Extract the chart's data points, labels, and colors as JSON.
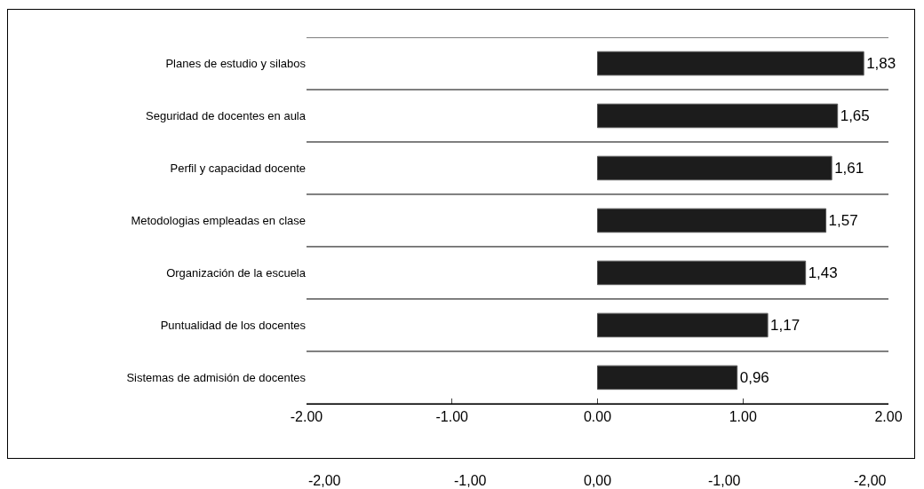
{
  "chart_data": {
    "type": "bar",
    "orientation": "horizontal",
    "categories": [
      "Planes de estudio y silabos",
      "Seguridad de docentes en aula",
      "Perfil y capacidad docente",
      "Metodologias empleadas en clase",
      "Organización de la escuela",
      "Puntualidad de los docentes",
      "Sistemas de admisión de docentes"
    ],
    "values": [
      1.83,
      1.65,
      1.61,
      1.57,
      1.43,
      1.17,
      0.96
    ],
    "value_labels": [
      "1,83",
      "1,65",
      "1,61",
      "1,57",
      "1,43",
      "1,17",
      "0,96"
    ],
    "color": "#1c1c1c",
    "xlim": [
      -2,
      2
    ],
    "xticks": [
      {
        "value": -2,
        "label": "-2.00"
      },
      {
        "value": -1,
        "label": "-1.00"
      },
      {
        "value": 0,
        "label": "0.00"
      },
      {
        "value": 1,
        "label": "1.00"
      },
      {
        "value": 2,
        "label": "2.00"
      }
    ],
    "annotations": [
      "-2,00",
      "-1,00",
      "0,00",
      "-1,00",
      "-2,00"
    ],
    "grid": true
  }
}
